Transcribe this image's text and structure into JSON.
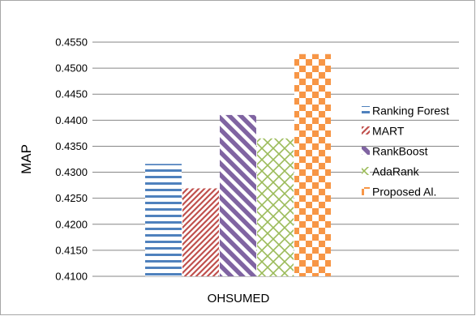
{
  "chart_data": {
    "type": "bar",
    "categories": [
      "OHSUMED"
    ],
    "series": [
      {
        "name": "Ranking Forest",
        "values": [
          0.4316
        ],
        "color": "#4f81bd",
        "pattern": "horizontal-stripes"
      },
      {
        "name": "MART",
        "values": [
          0.4269
        ],
        "color": "#c0504d",
        "pattern": "diagonal-up"
      },
      {
        "name": "RankBoost",
        "values": [
          0.441
        ],
        "color": "#8064a2",
        "pattern": "wide-diagonal-down"
      },
      {
        "name": "AdaRank",
        "values": [
          0.4365
        ],
        "color": "#9bbb59",
        "pattern": "diamond-grid"
      },
      {
        "name": "Proposed Al.",
        "values": [
          0.4527
        ],
        "color": "#f79646",
        "pattern": "checkerboard"
      }
    ],
    "ylabel": "MAP",
    "xlabel": "",
    "ylim": [
      0.41,
      0.455
    ],
    "yticks": [
      "0.4100",
      "0.4150",
      "0.4200",
      "0.4250",
      "0.4300",
      "0.4350",
      "0.4400",
      "0.4450",
      "0.4500",
      "0.4550"
    ],
    "grid": true,
    "legend": "right"
  }
}
